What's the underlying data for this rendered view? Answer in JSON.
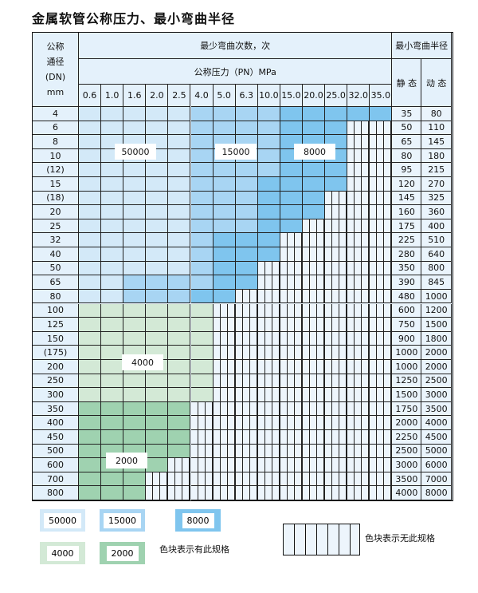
{
  "title": "金属软管公称压力、最小弯曲半径",
  "header": {
    "dn": "公称\n通径\n(DN)\nmm",
    "cycles": "最少弯曲次数，次",
    "pressure": "公称压力（PN）MPa",
    "radius": "最小弯曲半径",
    "static": "静 态",
    "dynamic": "动 态"
  },
  "pressures": [
    "0.6",
    "1.0",
    "1.6",
    "2.0",
    "2.5",
    "4.0",
    "5.0",
    "6.3",
    "10.0",
    "15.0",
    "20.0",
    "25.0",
    "32.0",
    "35.0"
  ],
  "colors": {
    "L": "#d3e9f8",
    "M": "#a8d5f3",
    "D": "#7fc5ee",
    "G1": "#d3e9d6",
    "G2": "#9fd2b0"
  },
  "rows": [
    {
      "dn": "4",
      "s": "35",
      "d": "80",
      "cells": "LLLLLMMMMDDDDD"
    },
    {
      "dn": "6",
      "s": "50",
      "d": "110",
      "cells": "LLLLLMMMMDDDHH"
    },
    {
      "dn": "8",
      "s": "65",
      "d": "145",
      "cells": "LLLLLMMMMDDDHH"
    },
    {
      "dn": "10",
      "s": "80",
      "d": "180",
      "cells": "LLLLLMMMMDDDHH"
    },
    {
      "dn": "(12)",
      "s": "95",
      "d": "215",
      "cells": "LLLLLMMMMDDDHH"
    },
    {
      "dn": "15",
      "s": "120",
      "d": "270",
      "cells": "LLLLLMMMDDDDHH"
    },
    {
      "dn": "(18)",
      "s": "145",
      "d": "325",
      "cells": "LLLLLMMMDDDHHH"
    },
    {
      "dn": "20",
      "s": "160",
      "d": "360",
      "cells": "LLLLLMMMDDDHHH"
    },
    {
      "dn": "25",
      "s": "175",
      "d": "400",
      "cells": "LLLLLMMMDDHHHH"
    },
    {
      "dn": "32",
      "s": "225",
      "d": "510",
      "cells": "LLLLLMDDDHHHHH"
    },
    {
      "dn": "40",
      "s": "280",
      "d": "640",
      "cells": "LLLLLMDDDHHHHH"
    },
    {
      "dn": "50",
      "s": "350",
      "d": "800",
      "cells": "LLLLLMDDHHHHHH"
    },
    {
      "dn": "65",
      "s": "390",
      "d": "845",
      "cells": "LLMMMMDDHHHHHH"
    },
    {
      "dn": "80",
      "s": "480",
      "d": "1000",
      "cells": "LLMMMDDHHHHHHH"
    },
    {
      "dn": "100",
      "s": "600",
      "d": "1200",
      "cells": "111111HHHHHHHH"
    },
    {
      "dn": "125",
      "s": "750",
      "d": "1500",
      "cells": "111111HHHHHHHH"
    },
    {
      "dn": "150",
      "s": "900",
      "d": "1800",
      "cells": "111111HHHHHHHH"
    },
    {
      "dn": "(175)",
      "s": "1000",
      "d": "2000",
      "cells": "111111HHHHHHHH"
    },
    {
      "dn": "200",
      "s": "1000",
      "d": "2000",
      "cells": "111111HHHHHHHH"
    },
    {
      "dn": "250",
      "s": "1250",
      "d": "2500",
      "cells": "111111HHHHHHHH"
    },
    {
      "dn": "300",
      "s": "1500",
      "d": "3000",
      "cells": "111111HHHHHHHH"
    },
    {
      "dn": "350",
      "s": "1750",
      "d": "3500",
      "cells": "22222HHHHHHHHH"
    },
    {
      "dn": "400",
      "s": "2000",
      "d": "4000",
      "cells": "22222HHHHHHHHH"
    },
    {
      "dn": "450",
      "s": "2250",
      "d": "4500",
      "cells": "22222HHHHHHHHH"
    },
    {
      "dn": "500",
      "s": "2500",
      "d": "5000",
      "cells": "22222HHHHHHHHH"
    },
    {
      "dn": "600",
      "s": "3000",
      "d": "6000",
      "cells": "2222HHHHHHHHHH"
    },
    {
      "dn": "700",
      "s": "3500",
      "d": "7000",
      "cells": "222HHHHHHHHHHH"
    },
    {
      "dn": "800",
      "s": "4000",
      "d": "8000",
      "cells": "222HHHHHHHHHHH"
    }
  ],
  "overlays": {
    "l": "50000",
    "m": "15000",
    "d": "8000",
    "g1": "4000",
    "g2": "2000"
  },
  "legend": {
    "l": "50000",
    "m": "15000",
    "d": "8000",
    "g1": "4000",
    "g2": "2000",
    "has": "色块表示有此规格",
    "none": "色块表示无此规格"
  }
}
